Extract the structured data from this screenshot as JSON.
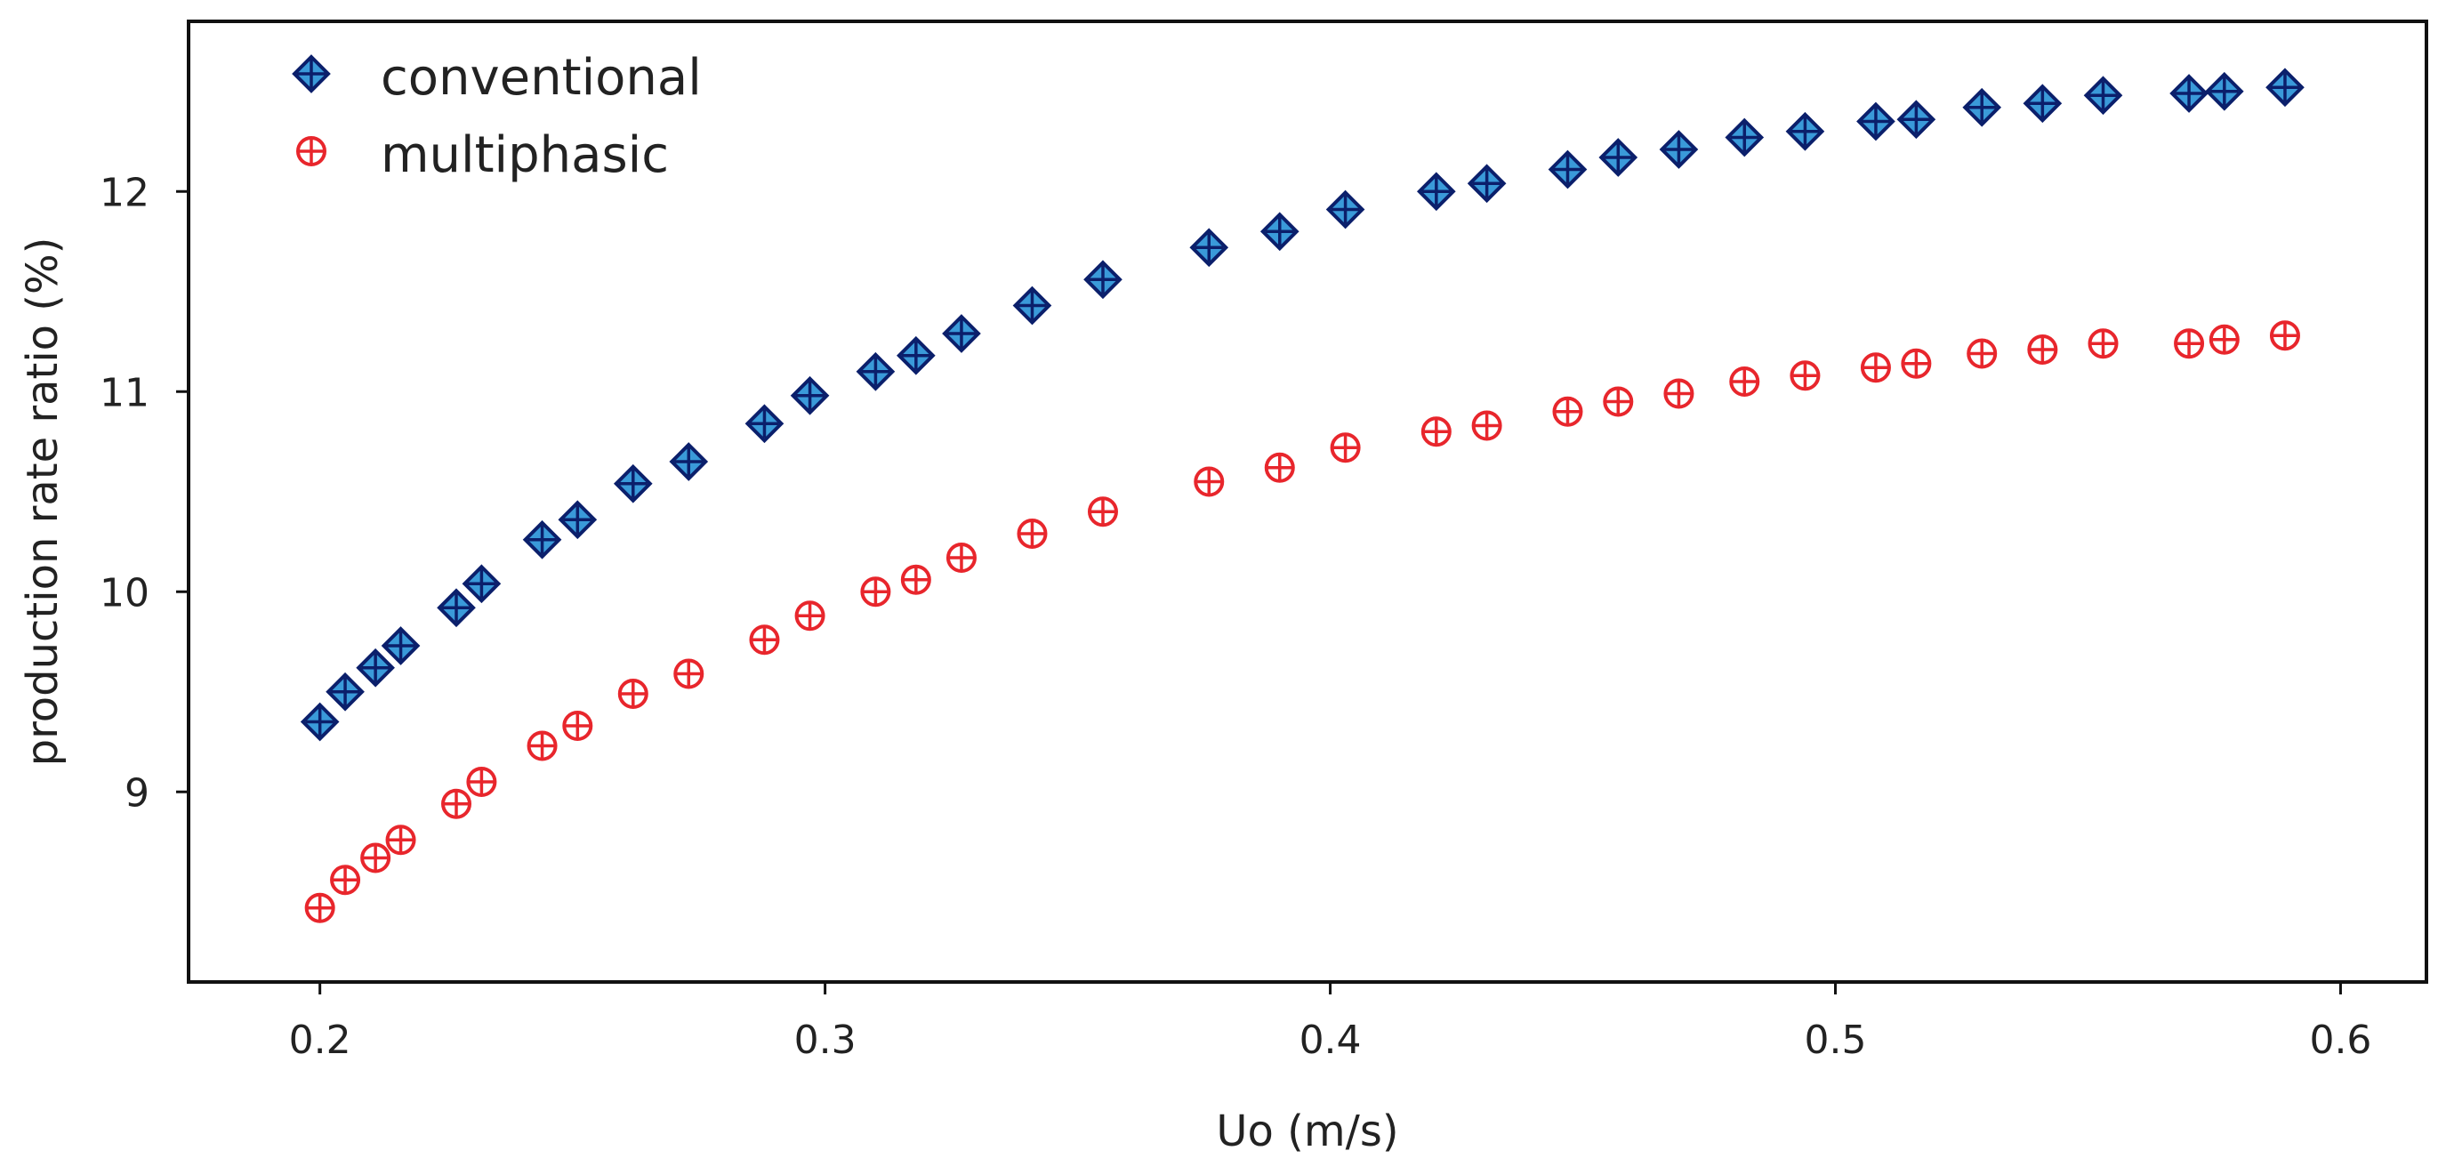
{
  "chart_data": {
    "type": "scatter",
    "title": "",
    "xlabel": "Uo (m/s)",
    "ylabel": "production rate ratio (%)",
    "xlim": [
      0.174,
      0.617
    ],
    "ylim": [
      8.05,
      12.85
    ],
    "xticks": [
      0.2,
      0.3,
      0.4,
      0.5,
      0.6
    ],
    "xtick_labels": [
      "0.2",
      "0.3",
      "0.4",
      "0.5",
      "0.6"
    ],
    "yticks": [
      9,
      10,
      11,
      12
    ],
    "ytick_labels": [
      "9",
      "10",
      "11",
      "12"
    ],
    "grid": false,
    "legend_position": "top-left",
    "series": [
      {
        "name": "conventional",
        "marker": "diamond-cross",
        "color": "#3a9ad9",
        "edge_color": "#0b1f6b",
        "x": [
          0.2,
          0.205,
          0.211,
          0.216,
          0.227,
          0.232,
          0.244,
          0.251,
          0.262,
          0.273,
          0.288,
          0.297,
          0.31,
          0.318,
          0.327,
          0.341,
          0.355,
          0.376,
          0.39,
          0.403,
          0.421,
          0.431,
          0.447,
          0.457,
          0.469,
          0.482,
          0.494,
          0.508,
          0.516,
          0.529,
          0.541,
          0.553,
          0.57,
          0.577,
          0.589
        ],
        "y": [
          9.35,
          9.5,
          9.62,
          9.73,
          9.92,
          10.04,
          10.26,
          10.36,
          10.54,
          10.65,
          10.84,
          10.98,
          11.1,
          11.18,
          11.29,
          11.43,
          11.56,
          11.72,
          11.8,
          11.91,
          12.0,
          12.04,
          12.11,
          12.17,
          12.21,
          12.27,
          12.3,
          12.35,
          12.36,
          12.42,
          12.44,
          12.48,
          12.49,
          12.5,
          12.52
        ]
      },
      {
        "name": "multiphasic",
        "marker": "circle-cross",
        "color": "#e8262c",
        "edge_color": "#e8262c",
        "x": [
          0.2,
          0.205,
          0.211,
          0.216,
          0.227,
          0.232,
          0.244,
          0.251,
          0.262,
          0.273,
          0.288,
          0.297,
          0.31,
          0.318,
          0.327,
          0.341,
          0.355,
          0.376,
          0.39,
          0.403,
          0.421,
          0.431,
          0.447,
          0.457,
          0.469,
          0.482,
          0.494,
          0.508,
          0.516,
          0.529,
          0.541,
          0.553,
          0.57,
          0.577,
          0.589
        ],
        "y": [
          8.42,
          8.56,
          8.67,
          8.76,
          8.94,
          9.05,
          9.23,
          9.33,
          9.49,
          9.59,
          9.76,
          9.88,
          10.0,
          10.06,
          10.17,
          10.29,
          10.4,
          10.55,
          10.62,
          10.72,
          10.8,
          10.83,
          10.9,
          10.95,
          10.99,
          11.05,
          11.08,
          11.12,
          11.14,
          11.19,
          11.21,
          11.24,
          11.24,
          11.26,
          11.28
        ]
      }
    ]
  }
}
